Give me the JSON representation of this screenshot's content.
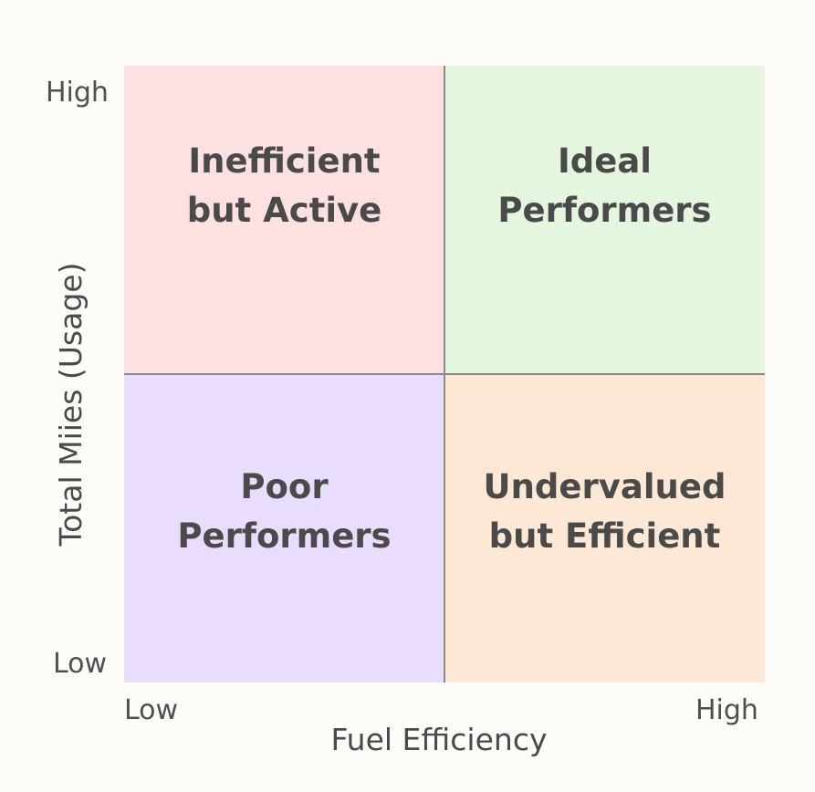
{
  "colors": {
    "top_left": "#fde0e0",
    "top_right": "#e4f6de",
    "bottom_left": "#e9dcfd",
    "bottom_right": "#fde8d6",
    "divider": "#8a8a8a",
    "text": "#4a4a4a",
    "background": "#fdfcf8"
  },
  "axes": {
    "x_title": "Fuel Efficiency",
    "y_title": "Total Miies (Usage)",
    "x_low": "Low",
    "x_high": "High",
    "y_low": "Low",
    "y_high": "High"
  },
  "quadrants": {
    "top_left": {
      "line1": "Inefficient",
      "line2": "but Active"
    },
    "top_right": {
      "line1": "Ideal",
      "line2": "Performers"
    },
    "bottom_left": {
      "line1": "Poor",
      "line2": "Performers"
    },
    "bottom_right": {
      "line1": "Undervalued",
      "line2": "but Efficient"
    }
  }
}
